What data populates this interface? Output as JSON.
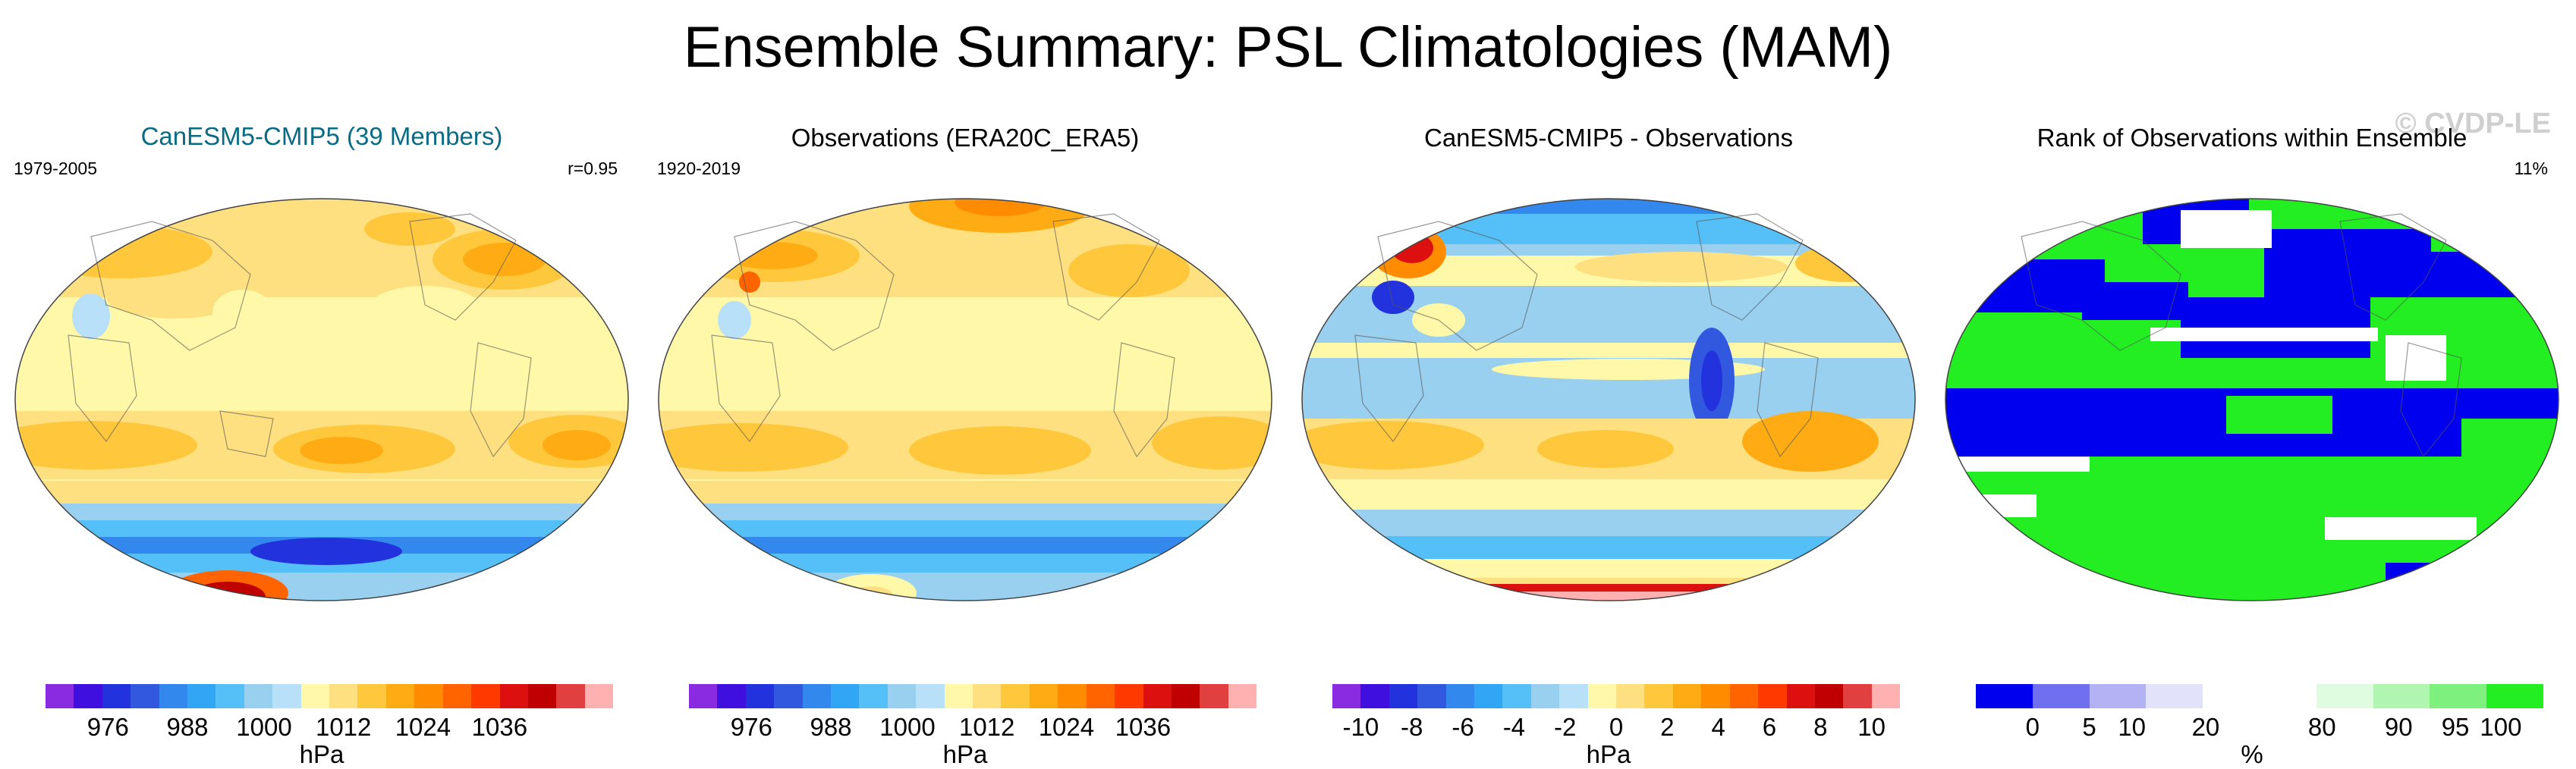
{
  "title": "Ensemble Summary: PSL Climatologies (MAM)",
  "watermark": "© CVDP-LE",
  "panels": [
    {
      "title": "CanESM5-CMIP5 (39 Members)",
      "left_label": "1979-2005",
      "right_label": "r=0.95",
      "units": "hPa",
      "colorbar": [
        "#8a2be2",
        "#3f0fe0",
        "#2233dd",
        "#3358e0",
        "#3388ee",
        "#30a6f5",
        "#55c0f8",
        "#9ad0ef",
        "#b8e0f8",
        "#fff8a8",
        "#ffe080",
        "#ffc83c",
        "#ffac14",
        "#ff8c00",
        "#ff6400",
        "#ff3a00",
        "#dd1010",
        "#c00000",
        "#e04040",
        "#ffb0b0"
      ],
      "ticks": [
        "976",
        "988",
        "1000",
        "1012",
        "1024",
        "1036"
      ]
    },
    {
      "title": "Observations (ERA20C_ERA5)",
      "left_label": "1920-2019",
      "units": "hPa",
      "colorbar": [
        "#8a2be2",
        "#3f0fe0",
        "#2233dd",
        "#3358e0",
        "#3388ee",
        "#30a6f5",
        "#55c0f8",
        "#9ad0ef",
        "#b8e0f8",
        "#fff8a8",
        "#ffe080",
        "#ffc83c",
        "#ffac14",
        "#ff8c00",
        "#ff6400",
        "#ff3a00",
        "#dd1010",
        "#c00000",
        "#e04040",
        "#ffb0b0"
      ],
      "ticks": [
        "976",
        "988",
        "1000",
        "1012",
        "1024",
        "1036"
      ]
    },
    {
      "title": "CanESM5-CMIP5 - Observations",
      "units": "hPa",
      "colorbar": [
        "#8a2be2",
        "#3f0fe0",
        "#2233dd",
        "#3358e0",
        "#3388ee",
        "#30a6f5",
        "#55c0f8",
        "#9ad0ef",
        "#b8e0f8",
        "#fff8a8",
        "#ffe080",
        "#ffc83c",
        "#ffac14",
        "#ff8c00",
        "#ff6400",
        "#ff3a00",
        "#dd1010",
        "#c00000",
        "#e04040",
        "#ffb0b0"
      ],
      "ticks": [
        "-10",
        "-8",
        "-6",
        "-4",
        "-2",
        "0",
        "2",
        "4",
        "6",
        "8",
        "10"
      ]
    },
    {
      "title": "Rank of Observations within Ensemble",
      "right_label": "11%",
      "units": "%",
      "colorbar": [
        "#0000ee",
        "#6f6ff0",
        "#b2b2f5",
        "#e2e2fb",
        "#ffffff",
        "#ffffff",
        "#e0fce0",
        "#b0f5b0",
        "#7ef07e",
        "#22ee22"
      ],
      "ticks": [
        "0",
        "5",
        "10",
        "20",
        "80",
        "90",
        "95",
        "100"
      ]
    }
  ]
}
